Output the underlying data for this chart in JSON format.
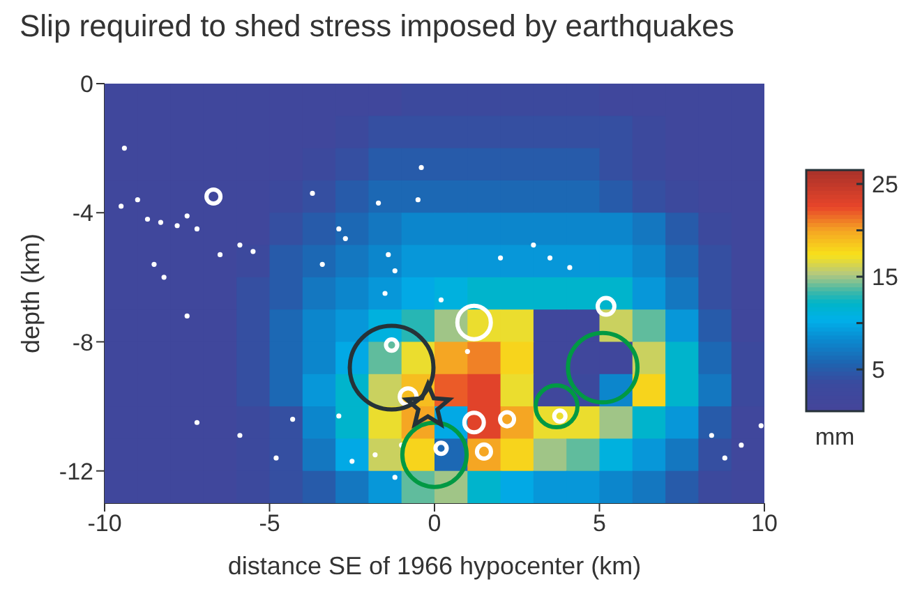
{
  "chart_data": {
    "type": "heatmap",
    "title": "Slip required to shed stress imposed by earthquakes",
    "xlabel": "distance SE of 1966 hypocenter (km)",
    "ylabel": "depth (km)",
    "clabel": "mm",
    "xlim": [
      -10,
      10
    ],
    "xticks": [
      -10,
      -5,
      0,
      5,
      10
    ],
    "ylim": [
      -13,
      0
    ],
    "yticks": [
      0,
      -4,
      -8,
      -12
    ],
    "clim": [
      0.5,
      26.5
    ],
    "cticks": [
      5,
      {
        "value": 10,
        "label": null
      },
      15,
      {
        "value": 20,
        "label": null
      },
      25
    ],
    "x": [
      -9.5,
      -8.5,
      -7.5,
      -6.5,
      -5.5,
      -4.5,
      -3.5,
      -2.5,
      -1.5,
      -0.5,
      0.5,
      1.5,
      2.5,
      3.5,
      4.5,
      5.5,
      6.5,
      7.5,
      8.5,
      9.5
    ],
    "y": [
      -0.5,
      -1.5,
      -2.5,
      -3.5,
      -4.5,
      -5.5,
      -6.5,
      -7.5,
      -8.5,
      -9.5,
      -10.5,
      -11.5,
      -12.5
    ],
    "cells": [
      [
        2,
        2,
        2,
        2,
        2,
        2,
        2,
        2,
        2,
        3,
        3,
        3,
        3,
        3,
        3,
        2,
        2,
        2,
        2,
        2
      ],
      [
        2,
        2,
        2,
        2,
        2,
        2,
        2,
        3,
        4,
        4,
        4,
        4,
        4,
        4,
        4,
        4,
        3,
        2,
        2,
        2
      ],
      [
        2,
        2,
        2,
        2,
        2,
        2,
        3,
        4,
        5,
        5,
        5,
        5,
        5,
        5,
        5,
        4,
        3,
        2,
        2,
        2
      ],
      [
        2,
        2,
        2,
        2,
        2,
        3,
        4,
        5,
        6,
        6,
        6,
        6,
        6,
        6,
        6,
        5,
        4,
        3,
        2,
        2
      ],
      [
        2,
        2,
        2,
        2,
        2,
        4,
        5,
        6,
        7,
        8,
        8,
        8,
        8,
        8,
        8,
        8,
        7,
        5,
        3,
        2
      ],
      [
        2,
        2,
        2,
        2,
        3,
        5,
        6,
        7,
        8,
        9,
        9,
        9,
        9,
        9,
        9,
        9,
        8,
        6,
        4,
        2
      ],
      [
        2,
        2,
        2,
        2,
        4,
        5,
        7,
        8,
        9,
        10,
        11,
        12,
        12,
        12,
        12,
        12,
        9,
        7,
        4,
        2
      ],
      [
        2,
        2,
        2,
        2,
        4,
        6,
        8,
        9,
        11,
        13,
        15,
        17,
        17,
        2,
        2,
        16,
        14,
        9,
        5,
        2
      ],
      [
        2,
        2,
        2,
        2,
        4,
        6,
        8,
        10,
        14,
        17,
        20,
        21,
        18,
        2,
        2,
        2,
        16,
        12,
        6,
        3
      ],
      [
        2,
        2,
        2,
        2,
        4,
        6,
        9,
        12,
        16,
        19,
        22,
        23,
        17,
        2,
        3,
        8,
        18,
        12,
        7,
        3
      ],
      [
        2,
        2,
        2,
        2,
        3,
        4,
        8,
        12,
        17,
        20,
        10,
        23,
        20,
        17,
        17,
        15,
        12,
        9,
        5,
        2
      ],
      [
        2,
        2,
        2,
        2,
        3,
        4,
        7,
        10,
        16,
        18,
        6,
        20,
        18,
        15,
        14,
        11,
        9,
        7,
        4,
        2
      ],
      [
        2,
        2,
        2,
        2,
        3,
        4,
        5,
        7,
        9,
        14,
        15,
        12,
        10,
        9,
        9,
        8,
        7,
        5,
        3,
        2
      ]
    ],
    "series": [
      {
        "type": "scatter",
        "marker": "circle",
        "color": "#ffffff",
        "x": [
          -9.5,
          -9,
          -8.7,
          -8.3,
          -7.8,
          -7.5,
          -7.2,
          -6.5,
          -5.9,
          -5.5,
          -8.5,
          -8.2,
          -9.4,
          -7.5,
          -2.9,
          -3.7,
          -2.7,
          -1.7,
          -1.4,
          -1.5,
          -0.5,
          -0.4,
          -1.2,
          -3.4,
          -7.2,
          -5.9,
          -4.3,
          -4.8,
          -2.5,
          -1.8,
          -1,
          -1.2,
          -2.9,
          1,
          3,
          3.5,
          4.1,
          2,
          0.2,
          8.4,
          8.8,
          9.3,
          9.9
        ],
        "values": [
          -3.8,
          -3.6,
          -4.2,
          -4.3,
          -4.4,
          -4.1,
          -4.5,
          -5.3,
          -5,
          -5.2,
          -5.6,
          -6,
          -2,
          -7.2,
          -4.5,
          -3.4,
          -4.8,
          -3.7,
          -5.3,
          -6.5,
          -3.6,
          -2.6,
          -5.8,
          -5.6,
          -10.5,
          -10.9,
          -10.4,
          -11.6,
          -11.7,
          -11.5,
          -11.2,
          -12.2,
          -10.3,
          -8.3,
          -5,
          -5.4,
          -5.7,
          -5.4,
          -6.7,
          -10.9,
          -11.6,
          -11.2,
          -10.6
        ]
      },
      {
        "type": "bubble",
        "color": "#ffffff",
        "x": [
          1.2,
          5.2,
          -0.8,
          1.2,
          2.2,
          1.5,
          -6.7,
          -1.3,
          0.2,
          3.8
        ],
        "values": [
          -7.4,
          -6.9,
          -9.7,
          -10.5,
          -10.4,
          -11.4,
          -3.5,
          -8.1,
          -11.3,
          -10.3
        ],
        "sizes": [
          0.16,
          0.04,
          0.04,
          0.054,
          0.028,
          0.028,
          0.028,
          0.018,
          0.018,
          0.018
        ]
      },
      {
        "type": "bubble",
        "color": "#009944",
        "x": [
          0,
          3.7,
          5.1
        ],
        "values": [
          -11.5,
          -10,
          -8.8
        ],
        "sizes": [
          0.59,
          0.25,
          0.69
        ]
      },
      {
        "type": "bubble",
        "color": "#263238",
        "x": [
          -1.3
        ],
        "values": [
          -8.8
        ],
        "sizes": [
          1
        ]
      },
      {
        "type": "scatter",
        "marker": "star",
        "color": "#263238",
        "x": [
          -0.2
        ],
        "values": [
          -10
        ]
      }
    ]
  }
}
